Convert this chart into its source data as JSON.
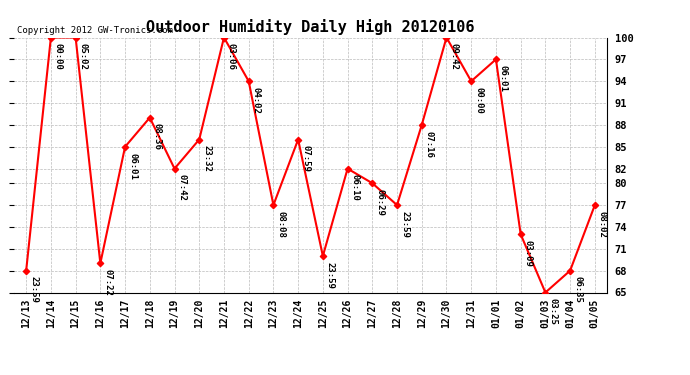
{
  "title": "Outdoor Humidity Daily High 20120106",
  "copyright": "Copyright 2012 GW-Tronics.com",
  "x_labels": [
    "12/13",
    "12/14",
    "12/15",
    "12/16",
    "12/17",
    "12/18",
    "12/19",
    "12/20",
    "12/21",
    "12/22",
    "12/23",
    "12/24",
    "12/25",
    "12/26",
    "12/27",
    "12/28",
    "12/29",
    "12/30",
    "12/31",
    "01/01",
    "01/02",
    "01/03",
    "01/04",
    "01/05"
  ],
  "y_values": [
    68,
    100,
    100,
    69,
    85,
    89,
    82,
    86,
    100,
    94,
    77,
    86,
    70,
    82,
    80,
    77,
    88,
    100,
    94,
    97,
    73,
    65,
    68,
    77
  ],
  "point_labels": [
    "23:59",
    "00:00",
    "05:02",
    "07:22",
    "06:01",
    "08:36",
    "07:42",
    "23:32",
    "03:06",
    "04:02",
    "08:08",
    "07:59",
    "23:59",
    "06:10",
    "06:29",
    "23:59",
    "07:16",
    "09:42",
    "00:00",
    "06:01",
    "03:09",
    "03:25",
    "06:35",
    "08:02"
  ],
  "line_color": "#ff0000",
  "marker_color": "#ff0000",
  "background_color": "#ffffff",
  "grid_color": "#bbbbbb",
  "ylim": [
    65,
    100
  ],
  "yticks": [
    65,
    68,
    71,
    74,
    77,
    80,
    82,
    85,
    88,
    91,
    94,
    97,
    100
  ],
  "title_fontsize": 11,
  "label_fontsize": 6.5,
  "copyright_fontsize": 6.5
}
